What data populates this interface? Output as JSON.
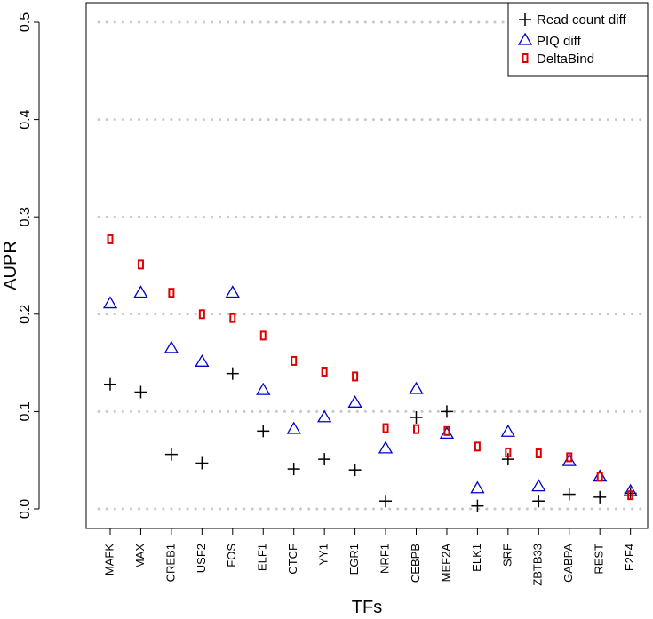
{
  "chart_data": {
    "type": "scatter",
    "xlabel": "TFs",
    "ylabel": "AUPR",
    "ylim": [
      0,
      0.5
    ],
    "yticks": [
      "0.0",
      "0.1",
      "0.2",
      "0.3",
      "0.4",
      "0.5"
    ],
    "grid": "horizontal dotted",
    "legend_position": "top-right",
    "categories": [
      "MAFK",
      "MAX",
      "CREB1",
      "USF2",
      "FOS",
      "ELF1",
      "CTCF",
      "YY1",
      "EGR1",
      "NRF1",
      "CEBPB",
      "MEF2A",
      "ELK1",
      "SRF",
      "ZBTB33",
      "GABPA",
      "REST",
      "E2F4"
    ],
    "series": [
      {
        "name": "Read count diff",
        "marker": "plus",
        "color": "#000000",
        "values": [
          0.128,
          0.12,
          0.056,
          0.047,
          0.139,
          0.08,
          0.041,
          0.051,
          0.04,
          0.008,
          0.094,
          0.1,
          0.003,
          0.051,
          0.008,
          0.015,
          0.012,
          0.016
        ]
      },
      {
        "name": "PIQ diff",
        "marker": "triangle",
        "color": "#0000cc",
        "values": [
          0.211,
          0.222,
          0.165,
          0.151,
          0.222,
          0.122,
          0.082,
          0.094,
          0.109,
          0.062,
          0.123,
          0.077,
          0.021,
          0.079,
          0.023,
          0.049,
          0.033,
          0.018
        ]
      },
      {
        "name": "DeltaBind",
        "marker": "rect",
        "color": "#dd0000",
        "values": [
          0.277,
          0.251,
          0.222,
          0.2,
          0.196,
          0.178,
          0.152,
          0.141,
          0.136,
          0.083,
          0.082,
          0.08,
          0.064,
          0.058,
          0.057,
          0.053,
          0.033,
          0.014
        ]
      }
    ]
  }
}
